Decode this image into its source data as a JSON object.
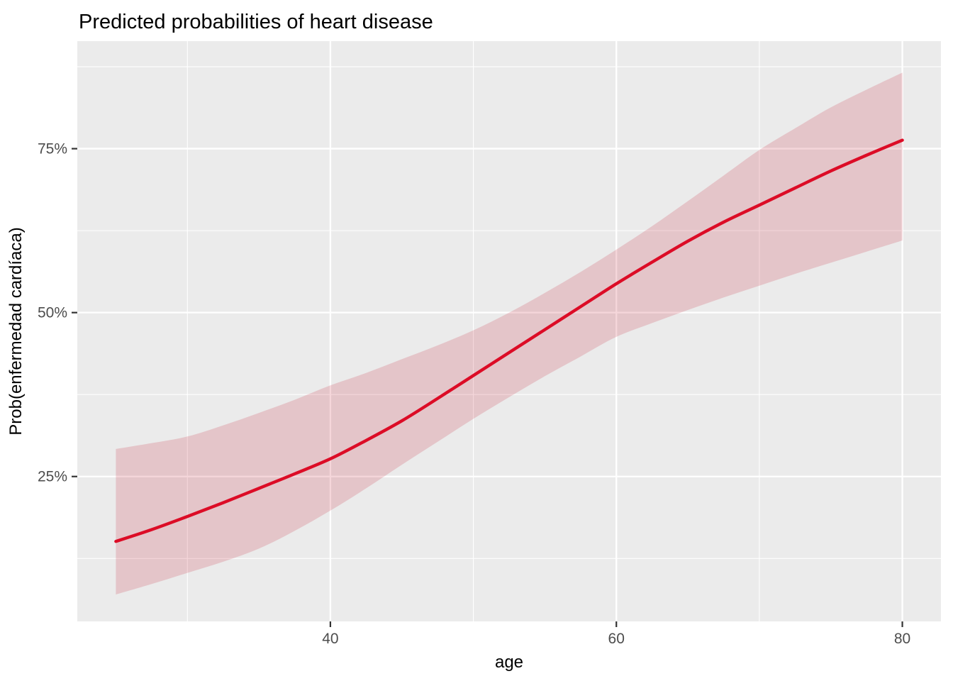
{
  "chart_data": {
    "type": "line",
    "title": "Predicted probabilities of heart disease",
    "xlabel": "age",
    "ylabel": "Prob(enfermedad cardíaca)",
    "legend": "none",
    "grid": "on",
    "x_domain": [
      22.3,
      82.7
    ],
    "y_domain_pct": [
      2.9,
      91.4
    ],
    "x_ticks": [
      40,
      60,
      80
    ],
    "x_tick_labels": [
      "40",
      "60",
      "80"
    ],
    "x_minor_ticks": [
      30,
      50,
      70
    ],
    "y_ticks": [
      25,
      50,
      75
    ],
    "y_tick_labels": [
      "25%",
      "50%",
      "75%"
    ],
    "y_minor_ticks": [
      12.5,
      37.5,
      62.5,
      87.5
    ],
    "x": [
      25,
      27.5,
      30,
      32.5,
      35,
      37.5,
      40,
      42.5,
      45,
      47.5,
      50,
      52.5,
      55,
      57.5,
      60,
      62.5,
      65,
      67.5,
      70,
      72.5,
      75,
      77.5,
      80
    ],
    "series": [
      {
        "name": "fitted_probability_pct",
        "values": [
          15.1,
          16.9,
          18.9,
          21.0,
          23.2,
          25.4,
          27.7,
          30.5,
          33.5,
          36.9,
          40.4,
          43.9,
          47.4,
          50.9,
          54.4,
          57.7,
          60.9,
          63.8,
          66.4,
          69.0,
          71.6,
          74.0,
          76.3
        ]
      },
      {
        "name": "ci_upper_pct",
        "values": [
          29.2,
          30.1,
          31.1,
          32.8,
          34.7,
          36.7,
          38.9,
          40.8,
          42.9,
          45.0,
          47.3,
          50.0,
          53.0,
          56.2,
          59.6,
          63.2,
          67.0,
          70.9,
          74.8,
          78.1,
          81.3,
          84.0,
          86.6
        ]
      },
      {
        "name": "ci_lower_pct",
        "values": [
          7.0,
          8.6,
          10.3,
          12.0,
          14.0,
          16.7,
          19.8,
          23.2,
          26.8,
          30.3,
          33.8,
          37.1,
          40.3,
          43.3,
          46.3,
          48.4,
          50.4,
          52.3,
          54.1,
          55.9,
          57.6,
          59.3,
          61.0
        ]
      }
    ],
    "colors": {
      "line": "#DC0C26",
      "ribbon_fill": "rgba(197,27,52,0.18)",
      "panel_background": "#EBEBEB",
      "gridline": "#FFFFFF",
      "tick_mark": "#333333",
      "tick_label": "#4D4D4D",
      "title_text": "#000000"
    }
  }
}
